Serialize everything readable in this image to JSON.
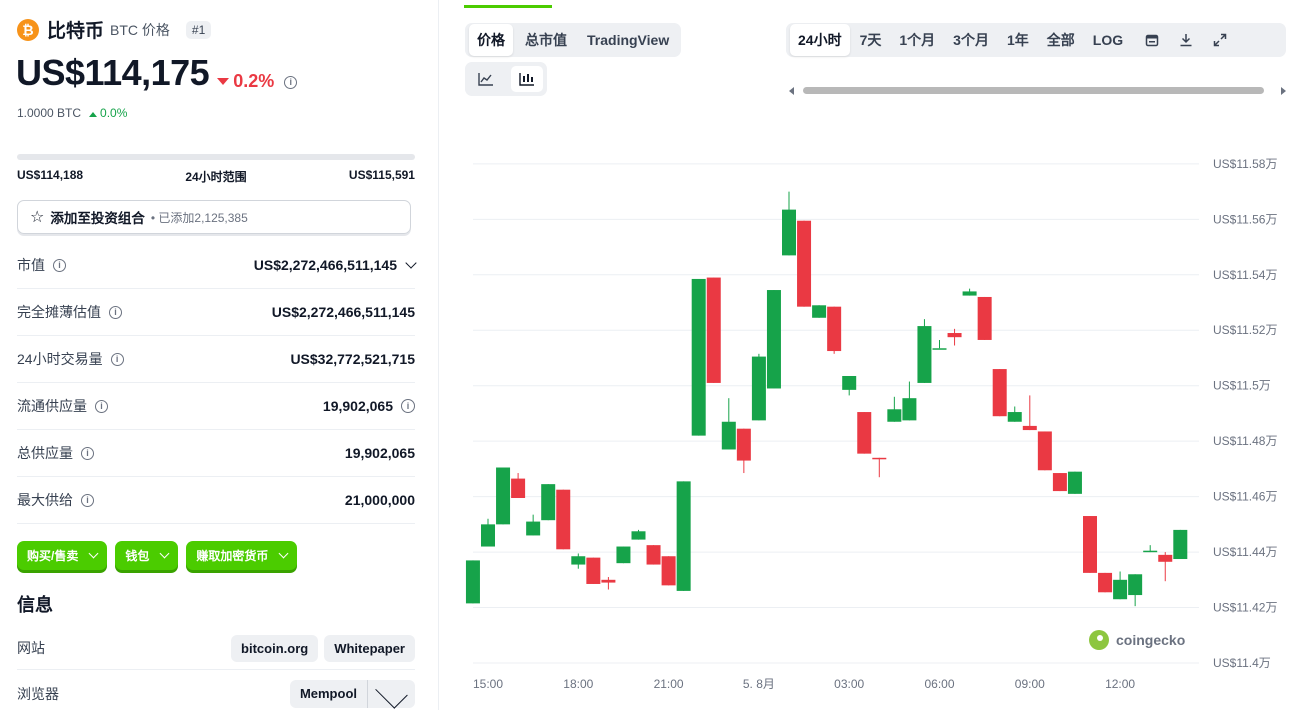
{
  "coin": {
    "logo_symbol": "₿",
    "name": "比特币",
    "symbol_label": "BTC 价格",
    "rank": "#1",
    "price": "US$114,175",
    "change_24h": "0.2%",
    "btc_value": "1.0000 BTC",
    "btc_change": "0.0%"
  },
  "range": {
    "low": "US$114,188",
    "label": "24小时范围",
    "high": "US$115,591"
  },
  "portfolio": {
    "label": "添加至投资组合",
    "added": "已添加2,125,385"
  },
  "stats": [
    {
      "label": "市值",
      "value": "US$2,272,466,511,145"
    },
    {
      "label": "完全摊薄估值",
      "value": "US$2,272,466,511,145"
    },
    {
      "label": "24小时交易量",
      "value": "US$32,772,521,715"
    },
    {
      "label": "流通供应量",
      "value": "19,902,065"
    },
    {
      "label": "总供应量",
      "value": "19,902,065"
    },
    {
      "label": "最大供给",
      "value": "21,000,000"
    }
  ],
  "actions": {
    "buy_sell": "购买/售卖",
    "wallet": "钱包",
    "earn": "赚取加密货币"
  },
  "info": {
    "title": "信息",
    "website_label": "网站",
    "website_1": "bitcoin.org",
    "website_2": "Whitepaper",
    "explorer_label": "浏览器",
    "explorer_1": "Mempool"
  },
  "chart_tabs": [
    "价格",
    "总市值",
    "TradingView"
  ],
  "time_ranges": [
    "24小时",
    "7天",
    "1个月",
    "3个月",
    "1年",
    "全部",
    "LOG"
  ],
  "watermark": "coingecko",
  "colors": {
    "up": "#16a34a",
    "down": "#ea3943",
    "accent": "#4bcc00"
  },
  "chart_data": {
    "type": "candlestick",
    "x_ticks": [
      "15:00",
      "18:00",
      "21:00",
      "5. 8月",
      "03:00",
      "06:00",
      "09:00",
      "12:00"
    ],
    "x_tick_hours": [
      0,
      3,
      6,
      9,
      12,
      15,
      18,
      21
    ],
    "y_ticks": [
      "US$11.4万",
      "US$11.42万",
      "US$11.44万",
      "US$11.46万",
      "US$11.48万",
      "US$11.5万",
      "US$11.52万",
      "US$11.54万",
      "US$11.56万",
      "US$11.58万"
    ],
    "y_tick_values": [
      114000,
      114200,
      114400,
      114600,
      114800,
      115000,
      115200,
      115400,
      115600,
      115800
    ],
    "ylim": [
      114000,
      115850
    ],
    "candles": [
      {
        "t": -0.5,
        "o": 114215,
        "c": 114370,
        "h": 114370,
        "l": 114215
      },
      {
        "t": 0.0,
        "o": 114420,
        "c": 114500,
        "h": 114520,
        "l": 114420
      },
      {
        "t": 0.5,
        "o": 114500,
        "c": 114705,
        "h": 114705,
        "l": 114500
      },
      {
        "t": 1.0,
        "o": 114665,
        "c": 114595,
        "h": 114685,
        "l": 114595
      },
      {
        "t": 1.5,
        "o": 114460,
        "c": 114510,
        "h": 114535,
        "l": 114460
      },
      {
        "t": 2.0,
        "o": 114515,
        "c": 114645,
        "h": 114645,
        "l": 114515
      },
      {
        "t": 2.5,
        "o": 114625,
        "c": 114410,
        "h": 114625,
        "l": 114410
      },
      {
        "t": 3.0,
        "o": 114355,
        "c": 114385,
        "h": 114395,
        "l": 114340
      },
      {
        "t": 3.5,
        "o": 114380,
        "c": 114285,
        "h": 114380,
        "l": 114285
      },
      {
        "t": 4.0,
        "o": 114300,
        "c": 114290,
        "h": 114310,
        "l": 114265
      },
      {
        "t": 4.5,
        "o": 114360,
        "c": 114420,
        "h": 114420,
        "l": 114360
      },
      {
        "t": 5.0,
        "o": 114445,
        "c": 114475,
        "h": 114480,
        "l": 114445
      },
      {
        "t": 5.5,
        "o": 114425,
        "c": 114355,
        "h": 114425,
        "l": 114355
      },
      {
        "t": 6.0,
        "o": 114385,
        "c": 114280,
        "h": 114385,
        "l": 114280
      },
      {
        "t": 6.5,
        "o": 114260,
        "c": 114655,
        "h": 114655,
        "l": 114260
      },
      {
        "t": 7.0,
        "o": 114820,
        "c": 115385,
        "h": 115385,
        "l": 114820
      },
      {
        "t": 7.5,
        "o": 115390,
        "c": 115010,
        "h": 115390,
        "l": 115010
      },
      {
        "t": 8.0,
        "o": 114770,
        "c": 114870,
        "h": 114955,
        "l": 114770
      },
      {
        "t": 8.5,
        "o": 114845,
        "c": 114730,
        "h": 114845,
        "l": 114685
      },
      {
        "t": 9.0,
        "o": 114875,
        "c": 115105,
        "h": 115115,
        "l": 114875
      },
      {
        "t": 9.5,
        "o": 114990,
        "c": 115345,
        "h": 115345,
        "l": 114990
      },
      {
        "t": 10.0,
        "o": 115470,
        "c": 115635,
        "h": 115700,
        "l": 115470
      },
      {
        "t": 10.5,
        "o": 115595,
        "c": 115285,
        "h": 115595,
        "l": 115285
      },
      {
        "t": 11.0,
        "o": 115245,
        "c": 115290,
        "h": 115290,
        "l": 115245
      },
      {
        "t": 11.5,
        "o": 115285,
        "c": 115125,
        "h": 115285,
        "l": 115115
      },
      {
        "t": 12.0,
        "o": 114985,
        "c": 115035,
        "h": 115035,
        "l": 114965
      },
      {
        "t": 12.5,
        "o": 114905,
        "c": 114755,
        "h": 114905,
        "l": 114755
      },
      {
        "t": 13.0,
        "o": 114740,
        "c": 114735,
        "h": 114740,
        "l": 114670
      },
      {
        "t": 13.5,
        "o": 114870,
        "c": 114915,
        "h": 114960,
        "l": 114870
      },
      {
        "t": 14.0,
        "o": 114875,
        "c": 114955,
        "h": 115015,
        "l": 114875
      },
      {
        "t": 14.5,
        "o": 115010,
        "c": 115215,
        "h": 115240,
        "l": 115010
      },
      {
        "t": 15.0,
        "o": 115135,
        "c": 115135,
        "h": 115165,
        "l": 115135
      },
      {
        "t": 15.5,
        "o": 115190,
        "c": 115175,
        "h": 115205,
        "l": 115145
      },
      {
        "t": 16.0,
        "o": 115325,
        "c": 115340,
        "h": 115350,
        "l": 115325
      },
      {
        "t": 16.5,
        "o": 115320,
        "c": 115165,
        "h": 115320,
        "l": 115165
      },
      {
        "t": 17.0,
        "o": 115060,
        "c": 114890,
        "h": 115060,
        "l": 114890
      },
      {
        "t": 17.5,
        "o": 114870,
        "c": 114905,
        "h": 114925,
        "l": 114870
      },
      {
        "t": 18.0,
        "o": 114855,
        "c": 114840,
        "h": 114965,
        "l": 114840
      },
      {
        "t": 18.5,
        "o": 114835,
        "c": 114695,
        "h": 114835,
        "l": 114695
      },
      {
        "t": 19.0,
        "o": 114685,
        "c": 114620,
        "h": 114685,
        "l": 114620
      },
      {
        "t": 19.5,
        "o": 114610,
        "c": 114690,
        "h": 114690,
        "l": 114610
      },
      {
        "t": 20.0,
        "o": 114530,
        "c": 114325,
        "h": 114530,
        "l": 114325
      },
      {
        "t": 20.5,
        "o": 114325,
        "c": 114255,
        "h": 114325,
        "l": 114255
      },
      {
        "t": 21.0,
        "o": 114230,
        "c": 114300,
        "h": 114330,
        "l": 114230
      },
      {
        "t": 21.5,
        "o": 114245,
        "c": 114320,
        "h": 114320,
        "l": 114205
      },
      {
        "t": 22.0,
        "o": 114400,
        "c": 114405,
        "h": 114425,
        "l": 114400
      },
      {
        "t": 22.5,
        "o": 114390,
        "c": 114365,
        "h": 114400,
        "l": 114295
      },
      {
        "t": 23.0,
        "o": 114375,
        "c": 114480,
        "h": 114480,
        "l": 114375
      }
    ]
  }
}
